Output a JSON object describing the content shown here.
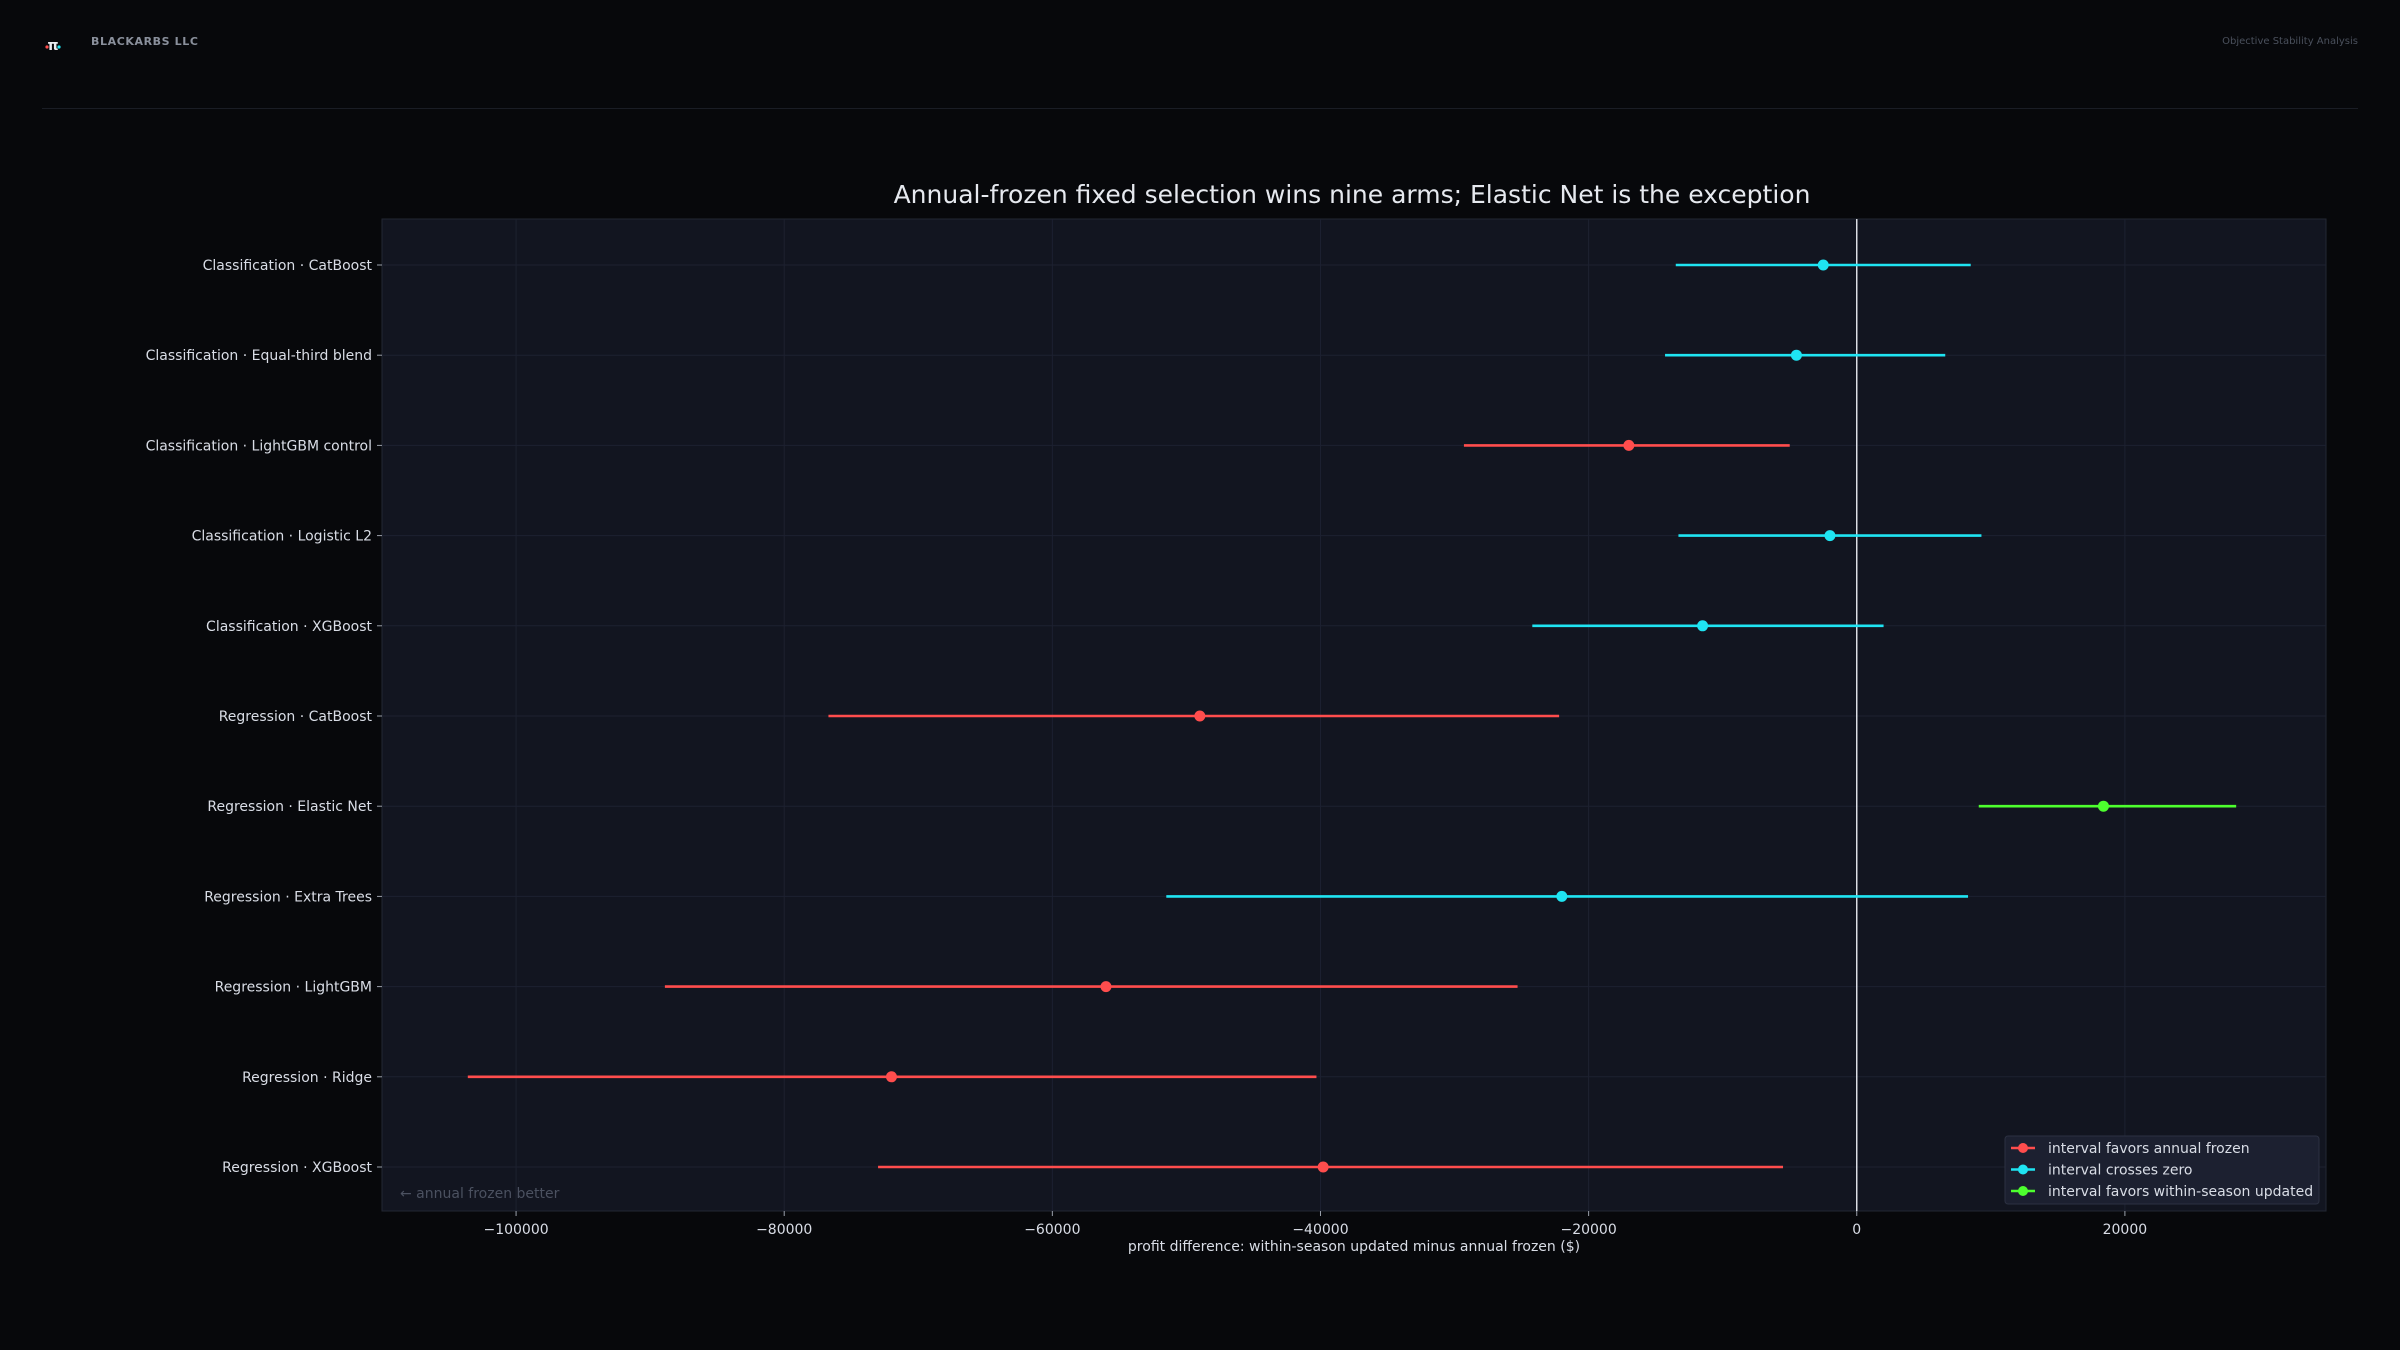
{
  "header": {
    "brand": "BLACKARBS LLC",
    "page_label": "Objective Stability Analysis",
    "logo_glyph": "π"
  },
  "colors": {
    "favors_frozen": "#ff4d4d",
    "crosses_zero": "#1fe4f2",
    "favors_updated": "#4dff2e",
    "plot_bg": "#121520",
    "page_bg": "#07080b"
  },
  "chart_data": {
    "type": "forest",
    "title": "Annual-frozen fixed selection wins nine arms; Elastic Net is the exception",
    "xlabel": "profit difference: within-season updated minus annual frozen ($)",
    "xlim": [
      -110000,
      35000
    ],
    "xticks": [
      -100000,
      -80000,
      -60000,
      -40000,
      -20000,
      0,
      20000
    ],
    "xtick_labels": [
      "−100000",
      "−80000",
      "−60000",
      "−40000",
      "−20000",
      "0",
      "20000"
    ],
    "reference_line": 0,
    "grid": true,
    "annotation": "← annual frozen better",
    "legend_position": "bottom-right",
    "legend": [
      {
        "category": "favors_frozen",
        "label": "interval favors annual frozen"
      },
      {
        "category": "crosses_zero",
        "label": "interval crosses zero"
      },
      {
        "category": "favors_updated",
        "label": "interval favors within-season updated"
      }
    ],
    "rows": [
      {
        "label": "Classification · CatBoost",
        "estimate": -2500,
        "low": -13500,
        "high": 8500,
        "category": "crosses_zero"
      },
      {
        "label": "Classification · Equal-third blend",
        "estimate": -4500,
        "low": -14300,
        "high": 6600,
        "category": "crosses_zero"
      },
      {
        "label": "Classification · LightGBM control",
        "estimate": -17000,
        "low": -29300,
        "high": -5000,
        "category": "favors_frozen"
      },
      {
        "label": "Classification · Logistic L2",
        "estimate": -2000,
        "low": -13300,
        "high": 9300,
        "category": "crosses_zero"
      },
      {
        "label": "Classification · XGBoost",
        "estimate": -11500,
        "low": -24200,
        "high": 2000,
        "category": "crosses_zero"
      },
      {
        "label": "Regression · CatBoost",
        "estimate": -49000,
        "low": -76700,
        "high": -22200,
        "category": "favors_frozen"
      },
      {
        "label": "Regression · Elastic Net",
        "estimate": 18400,
        "low": 9100,
        "high": 28300,
        "category": "favors_updated"
      },
      {
        "label": "Regression · Extra Trees",
        "estimate": -22000,
        "low": -51500,
        "high": 8300,
        "category": "crosses_zero"
      },
      {
        "label": "Regression · LightGBM",
        "estimate": -56000,
        "low": -88900,
        "high": -25300,
        "category": "favors_frozen"
      },
      {
        "label": "Regression · Ridge",
        "estimate": -72000,
        "low": -103600,
        "high": -40300,
        "category": "favors_frozen"
      },
      {
        "label": "Regression · XGBoost",
        "estimate": -39800,
        "low": -73000,
        "high": -5500,
        "category": "favors_frozen"
      }
    ]
  }
}
